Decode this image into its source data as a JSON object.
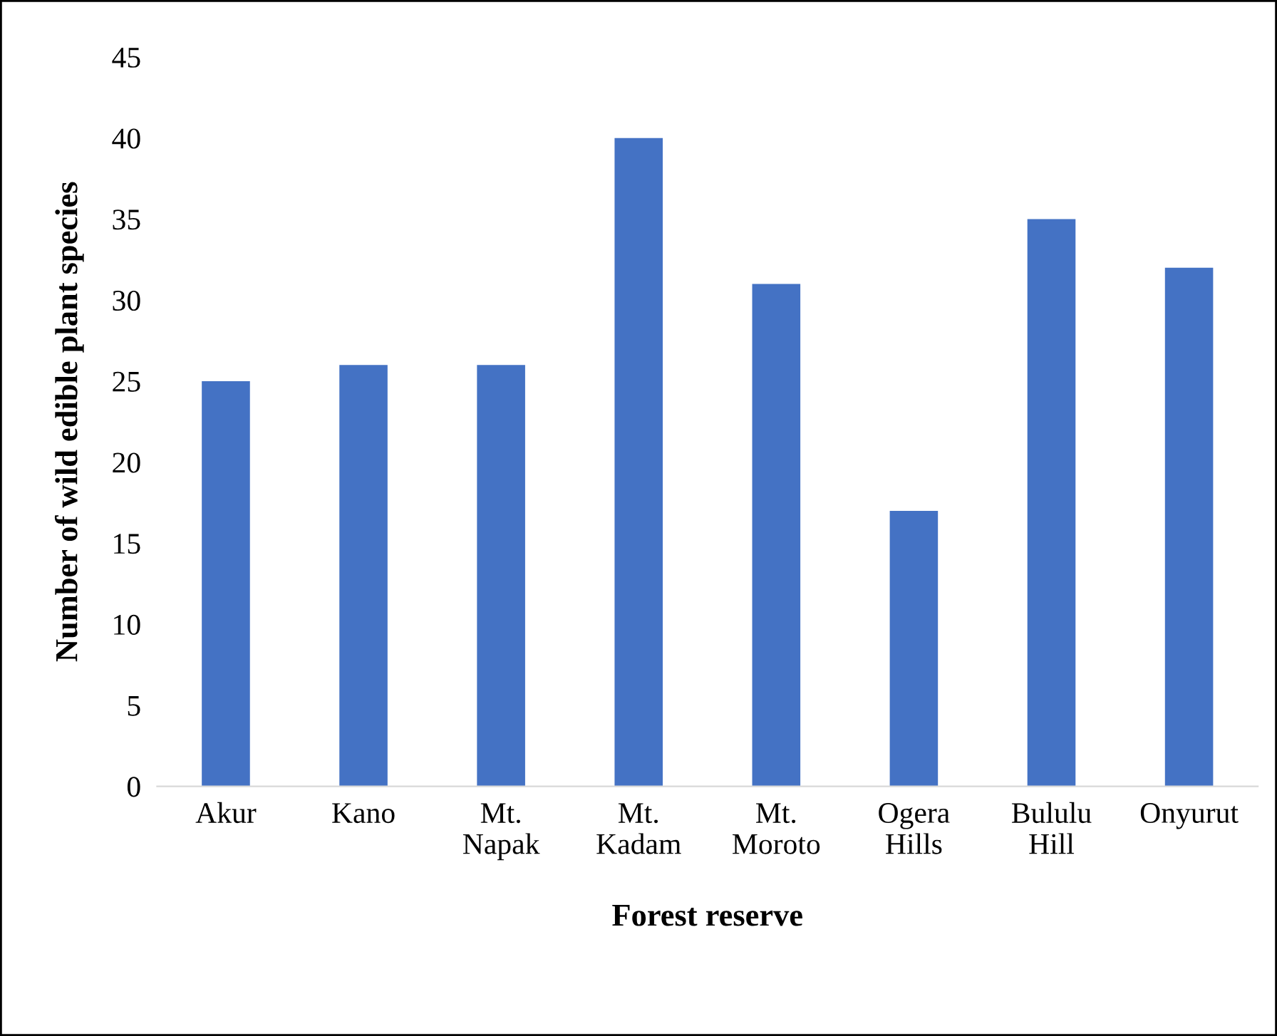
{
  "chart_data": {
    "type": "bar",
    "xlabel": "Forest reserve",
    "ylabel": "Number of wild edible plant species",
    "categories": [
      "Akur",
      "Kano",
      "Mt.\nNapak",
      "Mt.\nKadam",
      "Mt.\nMoroto",
      "Ogera\nHills",
      "Bululu\nHill",
      "Onyurut"
    ],
    "values": [
      25,
      26,
      26,
      40,
      31,
      17,
      35,
      32
    ],
    "color": "#4472c4",
    "ylim": [
      0,
      45
    ],
    "yticks": [
      0,
      5,
      10,
      15,
      20,
      25,
      30,
      35,
      40,
      45
    ],
    "grid": false,
    "legend": false
  }
}
